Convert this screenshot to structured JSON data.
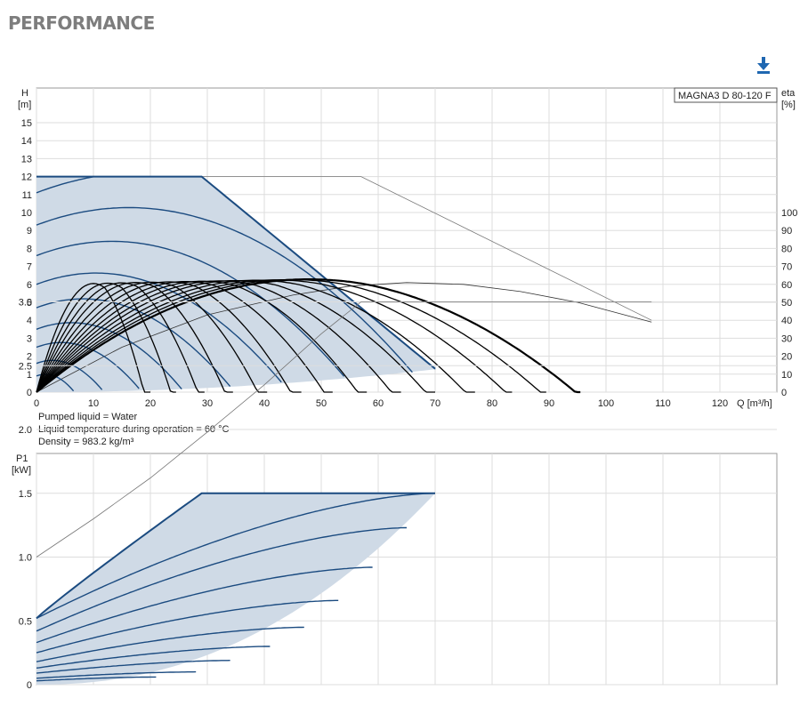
{
  "page": {
    "title": "PERFORMANCE",
    "download_icon": "download-icon",
    "accent_color": "#1f67b1"
  },
  "chart_data": [
    {
      "type": "line",
      "title": "",
      "model_label": "MAGNA3 D 80-120 F",
      "xlabel": "Q [m³/h]",
      "ylabel_left": [
        "H",
        "[m]"
      ],
      "ylabel_right": [
        "eta",
        "[%]"
      ],
      "xlim": [
        0,
        130
      ],
      "ylim": [
        0,
        16
      ],
      "ylim_right": [
        0,
        160
      ],
      "x_ticks": [
        0,
        10,
        20,
        30,
        40,
        50,
        60,
        70,
        80,
        90,
        100,
        110,
        120
      ],
      "y_ticks": [
        0,
        1,
        2,
        3,
        4,
        5,
        6,
        7,
        8,
        9,
        10,
        11,
        12,
        13,
        14,
        15
      ],
      "y_ticks_right": [
        0,
        10,
        20,
        30,
        40,
        50,
        60,
        70,
        80,
        90,
        100
      ],
      "grid": true,
      "colors": {
        "curves": "#1b4b80",
        "area": "#cfdae6",
        "efficiency": "#000000",
        "twin": "#555555"
      },
      "operating_area": {
        "max_head": 12,
        "knee_q": 29,
        "max_q": 70,
        "max_q_head": 1.3
      },
      "speed_curves": [
        {
          "name": "",
          "h0": 11.1,
          "shutoff": true
        },
        {
          "name": "",
          "h0": 9.3
        },
        {
          "name": "",
          "h0": 7.6
        },
        {
          "name": "",
          "h0": 6.0
        },
        {
          "name": "",
          "h0": 4.7
        },
        {
          "name": "",
          "h0": 3.5
        },
        {
          "name": "",
          "h0": 2.5
        },
        {
          "name": "",
          "h0": 1.6
        },
        {
          "name": "",
          "h0": 0.9
        }
      ],
      "twin_operation_curve": {
        "points": [
          [
            0,
            12
          ],
          [
            57,
            12
          ],
          [
            108,
            4.0
          ]
        ],
        "description": "twin pump max curve"
      },
      "twin_efficiency_curve": {
        "points": [
          [
            0,
            0
          ],
          [
            15,
            2.5
          ],
          [
            30,
            4.3
          ],
          [
            45,
            5.4
          ],
          [
            55,
            5.9
          ],
          [
            65,
            6.1
          ],
          [
            75,
            6.0
          ],
          [
            85,
            5.6
          ],
          [
            95,
            5.0
          ],
          [
            108,
            3.9
          ]
        ]
      },
      "efficiency_curves": {
        "peak_eta": 63,
        "peaks": [
          [
            6,
            0.6
          ],
          [
            10,
            1.1
          ],
          [
            14,
            1.6
          ],
          [
            18,
            2.2
          ],
          [
            23,
            2.7
          ],
          [
            28,
            3.3
          ],
          [
            33,
            3.9
          ],
          [
            38,
            4.4
          ],
          [
            43,
            5.0
          ],
          [
            48,
            5.6
          ],
          [
            54,
            6.3
          ],
          [
            60,
            6.8
          ],
          [
            65,
            7.3
          ],
          [
            70,
            7.7
          ]
        ]
      },
      "annotations": [
        "Pumped liquid = Water",
        "Liquid temperature during operation = 60 °C",
        "Density = 983.2 kg/m³"
      ]
    },
    {
      "type": "line",
      "title": "",
      "xlabel": "",
      "ylabel_left": [
        "P1",
        "[kW]"
      ],
      "xlim": [
        0,
        130
      ],
      "ylim": [
        0,
        3.5
      ],
      "y_ticks": [
        "0",
        "0.5",
        "1.0",
        "1.5",
        "2.0",
        "2.5",
        "3.0"
      ],
      "grid": true,
      "twin_power_curve": {
        "points": [
          [
            0,
            1.0
          ],
          [
            10,
            1.3
          ],
          [
            20,
            1.62
          ],
          [
            30,
            1.98
          ],
          [
            40,
            2.35
          ],
          [
            50,
            2.75
          ],
          [
            57,
            3.0
          ],
          [
            108,
            3.0
          ]
        ]
      },
      "max_power": 1.5,
      "knee_q": 29,
      "max_q": 70,
      "speed_power_curves": [
        {
          "p0": 0.52,
          "p_end": 1.5,
          "q_end": 70
        },
        {
          "p0": 0.42,
          "p_end": 1.23,
          "q_end": 65
        },
        {
          "p0": 0.33,
          "p_end": 0.92,
          "q_end": 59
        },
        {
          "p0": 0.25,
          "p_end": 0.66,
          "q_end": 53
        },
        {
          "p0": 0.18,
          "p_end": 0.45,
          "q_end": 47
        },
        {
          "p0": 0.13,
          "p_end": 0.3,
          "q_end": 41
        },
        {
          "p0": 0.09,
          "p_end": 0.19,
          "q_end": 34
        },
        {
          "p0": 0.05,
          "p_end": 0.1,
          "q_end": 28
        },
        {
          "p0": 0.03,
          "p_end": 0.06,
          "q_end": 21
        }
      ]
    }
  ]
}
